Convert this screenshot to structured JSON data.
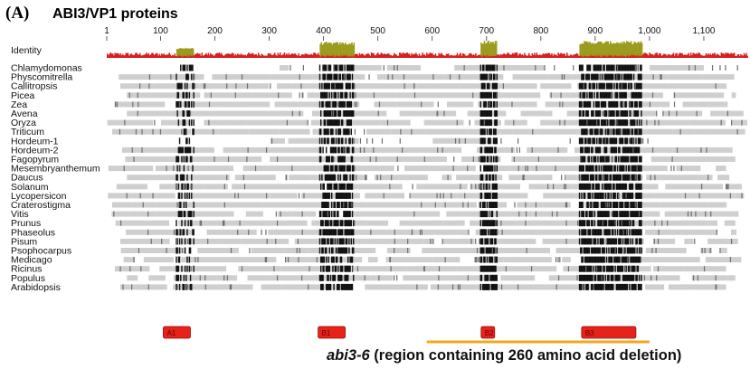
{
  "figure": {
    "panel_letter": "(A)",
    "title": "ABI3/VP1 proteins",
    "identity_label": "Identity",
    "ruler_ticks": [
      "1",
      "100",
      "200",
      "300",
      "400",
      "500",
      "600",
      "700",
      "800",
      "900",
      "1,000",
      "1,100"
    ],
    "ruler_tick_positions": [
      1,
      100,
      200,
      300,
      400,
      500,
      600,
      700,
      800,
      900,
      1000,
      1100
    ],
    "alignment_length": 1180,
    "sequences": [
      "Chlamydomonas",
      "Physcomitrella",
      "Callitropsis",
      "Picea",
      "Zea",
      "Avena",
      "Oryza",
      "Triticum",
      "Hordeum-1",
      "Hordeum-2",
      "Fagopyrum",
      "Mesembryanthemum",
      "Daucus",
      "Solanum",
      "Lycopersicon",
      "Craterostigma",
      "Vitis",
      "Prunus",
      "Phaseolus",
      "Pisum",
      "Psophocarpus",
      "Medicago",
      "Ricinus",
      "Populus",
      "Arabidopsis"
    ],
    "domains": [
      {
        "label": "A1",
        "start": 105,
        "end": 155
      },
      {
        "label": "B1",
        "start": 390,
        "end": 440
      },
      {
        "label": "B2",
        "start": 690,
        "end": 715
      },
      {
        "label": "B3",
        "start": 875,
        "end": 975
      }
    ],
    "conserved_regions": [
      {
        "start": 128,
        "end": 160,
        "level": 0.45
      },
      {
        "start": 392,
        "end": 455,
        "level": 0.85
      },
      {
        "start": 688,
        "end": 718,
        "level": 0.95
      },
      {
        "start": 870,
        "end": 985,
        "level": 0.92
      }
    ],
    "deletion": {
      "start": 590,
      "end": 1000,
      "caption_italic": "abi3-6",
      "caption_rest": " (region containing 260 amino acid deletion)"
    },
    "colors": {
      "identity_high": "#9b9b1e",
      "identity_low": "#d81e1e",
      "conserved": "#111111",
      "medium": "#6e6e6e",
      "light": "#cfcfcf",
      "domain_fill": "#e5231b",
      "domain_stroke": "#9a0f0a",
      "deletion_bar": "#f2a81d"
    }
  }
}
